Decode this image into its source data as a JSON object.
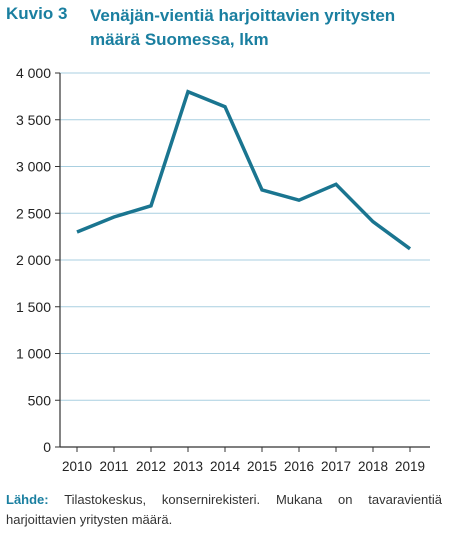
{
  "header": {
    "figure_label": "Kuvio 3",
    "title": "Venäjän-vientiä harjoittavien yritysten määrä Suomessa, lkm"
  },
  "source": {
    "label": "Lähde:",
    "text": " Tilastokeskus, konsernirekisteri. Mukana on tavaravientiä harjoittavien yritysten määrä."
  },
  "colors": {
    "accent": "#1a7fa0",
    "line": "#1a7590",
    "grid": "#a9cfe0"
  },
  "chart_data": {
    "type": "line",
    "title": "Venäjän-vientiä harjoittavien yritysten määrä Suomessa, lkm",
    "xlabel": "",
    "ylabel": "",
    "categories": [
      "2010",
      "2011",
      "2012",
      "2013",
      "2014",
      "2015",
      "2016",
      "2017",
      "2018",
      "2019"
    ],
    "series": [
      {
        "values": [
          2300,
          2460,
          2580,
          3800,
          3640,
          2750,
          2640,
          2810,
          2410,
          2120
        ]
      }
    ],
    "ylim": [
      0,
      4000
    ],
    "yticks": [
      {
        "value": 0,
        "label": "0"
      },
      {
        "value": 500,
        "label": "500"
      },
      {
        "value": 1000,
        "label": "1 000"
      },
      {
        "value": 1500,
        "label": "1 500"
      },
      {
        "value": 2000,
        "label": "2 000"
      },
      {
        "value": 2500,
        "label": "2 500"
      },
      {
        "value": 3000,
        "label": "3 000"
      },
      {
        "value": 3500,
        "label": "3 500"
      },
      {
        "value": 4000,
        "label": "4 000"
      }
    ],
    "grid": true,
    "legend": "none"
  }
}
